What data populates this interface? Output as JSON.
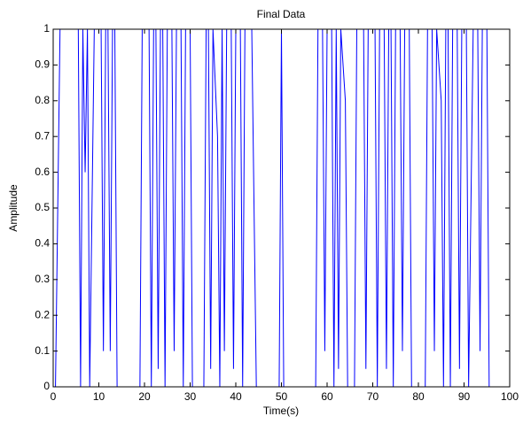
{
  "chart_data": {
    "type": "line",
    "title": "Final Data",
    "x_label": "Time(s)",
    "y_label": "Amplitude",
    "x": [
      0,
      0.5,
      1.5,
      5.5,
      6,
      6.5,
      7,
      7.5,
      8,
      9,
      10.5,
      11,
      11.5,
      12,
      12.5,
      13,
      13.5,
      14,
      19,
      19.5,
      21,
      21.5,
      22,
      22.5,
      23,
      23.5,
      24,
      24.5,
      25,
      26,
      26.5,
      27,
      28,
      28.5,
      29,
      30,
      30.5,
      33,
      33.5,
      34,
      34.5,
      35,
      36,
      36.5,
      37,
      37.5,
      38,
      39,
      39.5,
      40,
      41,
      41.5,
      42,
      43.5,
      44.5,
      49.5,
      50,
      50.5,
      57.5,
      58,
      59,
      59.5,
      60,
      61,
      61.5,
      62,
      62.5,
      63,
      64,
      64.5,
      66,
      66.5,
      68,
      68.5,
      69,
      70.5,
      71,
      71.5,
      72.5,
      73,
      73.5,
      74,
      74.5,
      75,
      76,
      76.5,
      77,
      78,
      78.5,
      81.5,
      82,
      83,
      83.5,
      84,
      85,
      85.5,
      86,
      86.5,
      87,
      87.5,
      88.5,
      89,
      89.5,
      90.5,
      91,
      92,
      93,
      93.5,
      94,
      95,
      95.5,
      96
    ],
    "series": [
      {
        "color": "#0000ff",
        "values": [
          0,
          0,
          1,
          1,
          0,
          1,
          0.6,
          1,
          0,
          1,
          1,
          0.1,
          1,
          1,
          0.1,
          1,
          1,
          0,
          0,
          1,
          1,
          0,
          1,
          1,
          0.05,
          1,
          1,
          0,
          1,
          1,
          0.1,
          1,
          1,
          0,
          1,
          1,
          0,
          0,
          1,
          1,
          0.05,
          1,
          0.7,
          0,
          1,
          0.1,
          1,
          1,
          0.05,
          1,
          1,
          0,
          1,
          1,
          0,
          0,
          1,
          0,
          0,
          1,
          1,
          0.1,
          1,
          1,
          0,
          1,
          0.05,
          1,
          0.8,
          0,
          0,
          1,
          1,
          0.05,
          1,
          1,
          0,
          1,
          1,
          0.05,
          1,
          1,
          0,
          1,
          1,
          0.1,
          1,
          1,
          0,
          0,
          1,
          1,
          0.1,
          1,
          0.8,
          0,
          1,
          1,
          0,
          1,
          1,
          0.05,
          1,
          1,
          0,
          1,
          1,
          0.1,
          1,
          1,
          0,
          0
        ]
      }
    ],
    "xlim": [
      0,
      100
    ],
    "xticks": [
      0,
      10,
      20,
      30,
      40,
      50,
      60,
      70,
      80,
      90,
      100
    ],
    "ylim": [
      0,
      1
    ],
    "yticks": [
      0,
      0.1,
      0.2,
      0.3,
      0.4,
      0.5,
      0.6,
      0.7,
      0.8,
      0.9,
      1
    ],
    "grid": false
  }
}
